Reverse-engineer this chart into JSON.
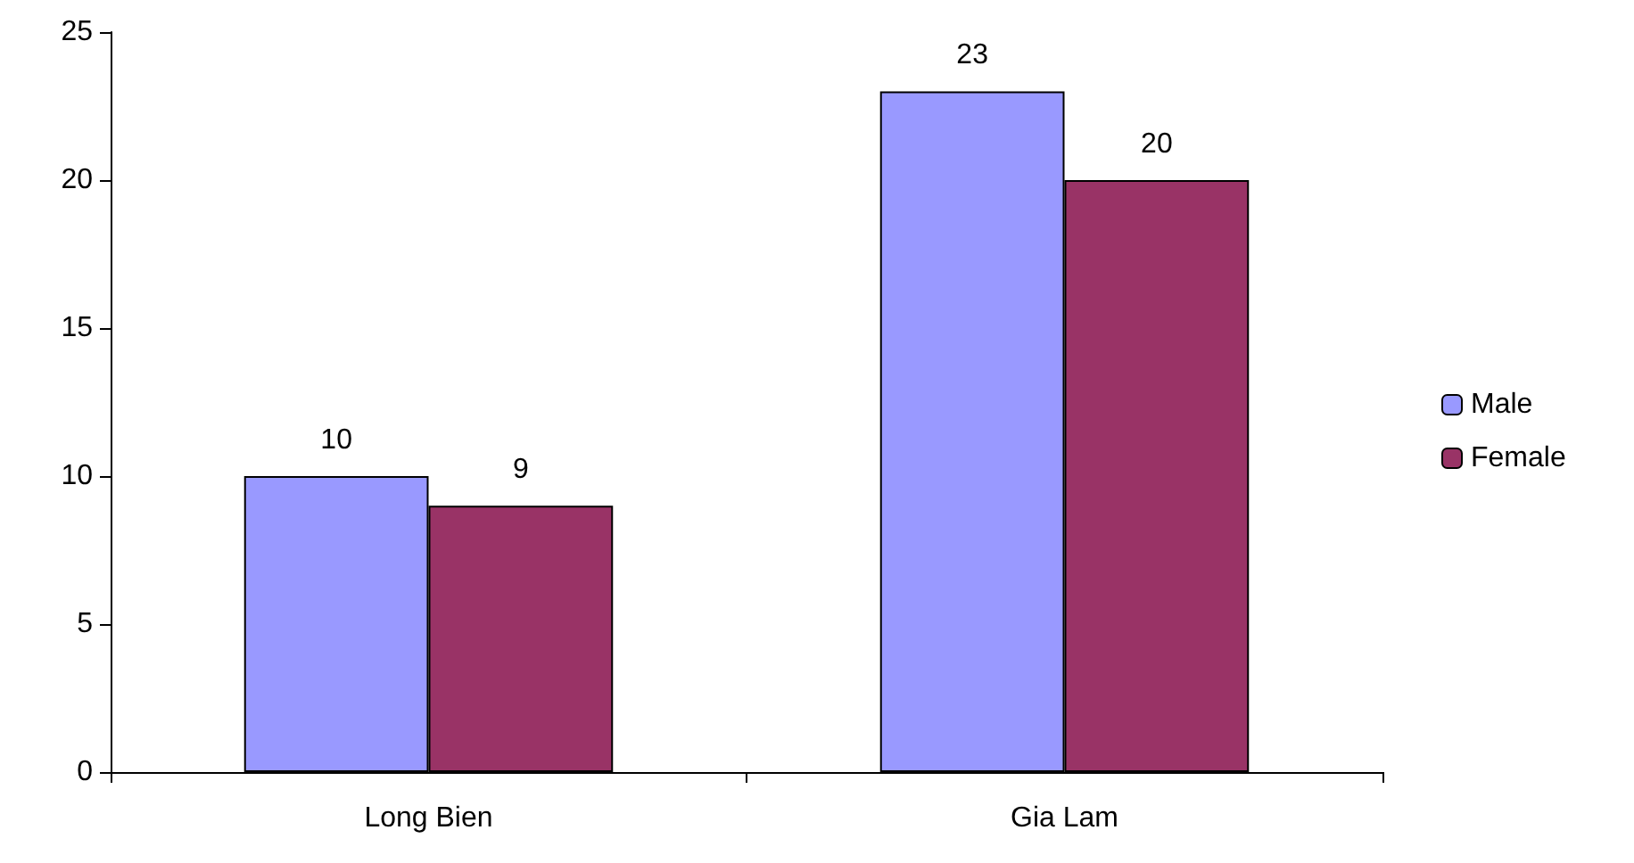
{
  "chart_data": {
    "type": "bar",
    "categories": [
      "Long Bien",
      "Gia Lam"
    ],
    "series": [
      {
        "name": "Male",
        "color": "#9999ff",
        "values": [
          10,
          23
        ]
      },
      {
        "name": "Female",
        "color": "#993366",
        "values": [
          9,
          20
        ]
      }
    ],
    "ylim": [
      0,
      25
    ],
    "yticks": [
      0,
      5,
      10,
      15,
      20,
      25
    ],
    "grid": false,
    "legend": "right",
    "data_labels": true
  }
}
